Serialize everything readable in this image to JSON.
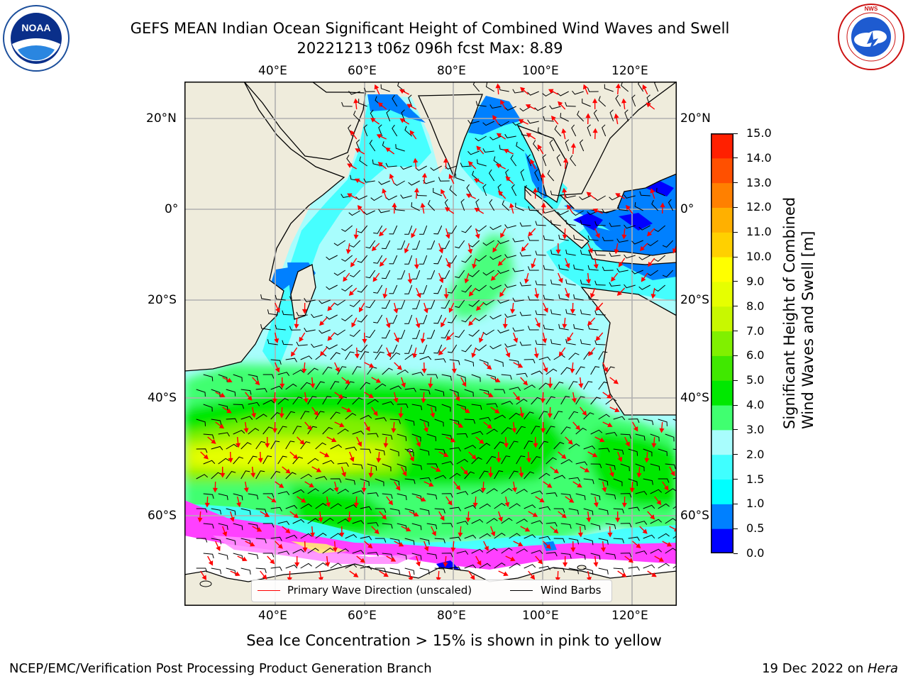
{
  "header": {
    "title_line1": "GEFS MEAN Indian Ocean Significant Height of Combined Wind Waves and Swell",
    "title_line2": "20221213 t06z 096h fcst   Max: 8.89",
    "noaa_logo_text": "NOAA",
    "noaa_seal_text": "NATIONAL OCEANIC AND ATMOSPHERIC ADMINISTRATION · U.S. DEPARTMENT OF COMMERCE",
    "nws_seal_text": "NATIONAL WEATHER SERVICE"
  },
  "map": {
    "lon_labels": [
      "40°E",
      "60°E",
      "80°E",
      "100°E",
      "120°E"
    ],
    "lat_labels": [
      "20°N",
      "0°",
      "20°S",
      "40°S",
      "60°S"
    ],
    "colors": {
      "land": "#efecdc",
      "ocean_low": "#00c8ff",
      "ocean_mid": "#a8fdfd",
      "ocean_high": "#40ff70",
      "peak": "#e6ff00",
      "ice": "#ff40ff"
    }
  },
  "legend": {
    "wave_direction": "Primary Wave Direction (unscaled)",
    "wind_barbs": "Wind Barbs",
    "wave_color": "#ff0000",
    "barb_color": "#000000"
  },
  "colorbar": {
    "label_line1": "Significant Height of Combined",
    "label_line2": "Wind Waves and Swell [m]",
    "ticks": [
      "15.0",
      "14.0",
      "13.0",
      "12.0",
      "11.0",
      "10.0",
      "9.0",
      "8.0",
      "7.0",
      "6.0",
      "5.0",
      "4.0",
      "3.0",
      "2.0",
      "1.5",
      "1.0",
      "0.5",
      "0.0"
    ],
    "colors": [
      "#0000ff",
      "#0080ff",
      "#00ffff",
      "#40ffff",
      "#a8fdfd",
      "#40ff70",
      "#00e800",
      "#40e800",
      "#80f000",
      "#c8f800",
      "#e6ff00",
      "#ffff00",
      "#ffd000",
      "#ffb000",
      "#ff8000",
      "#ff5000",
      "#ff2000",
      "#ff0000"
    ]
  },
  "note": "Sea Ice Concentration > 15% is shown in pink to yellow",
  "footer": {
    "left": "NCEP/EMC/Verification Post Processing Product Generation Branch",
    "date": "19 Dec 2022 on ",
    "machine": "Hera"
  }
}
